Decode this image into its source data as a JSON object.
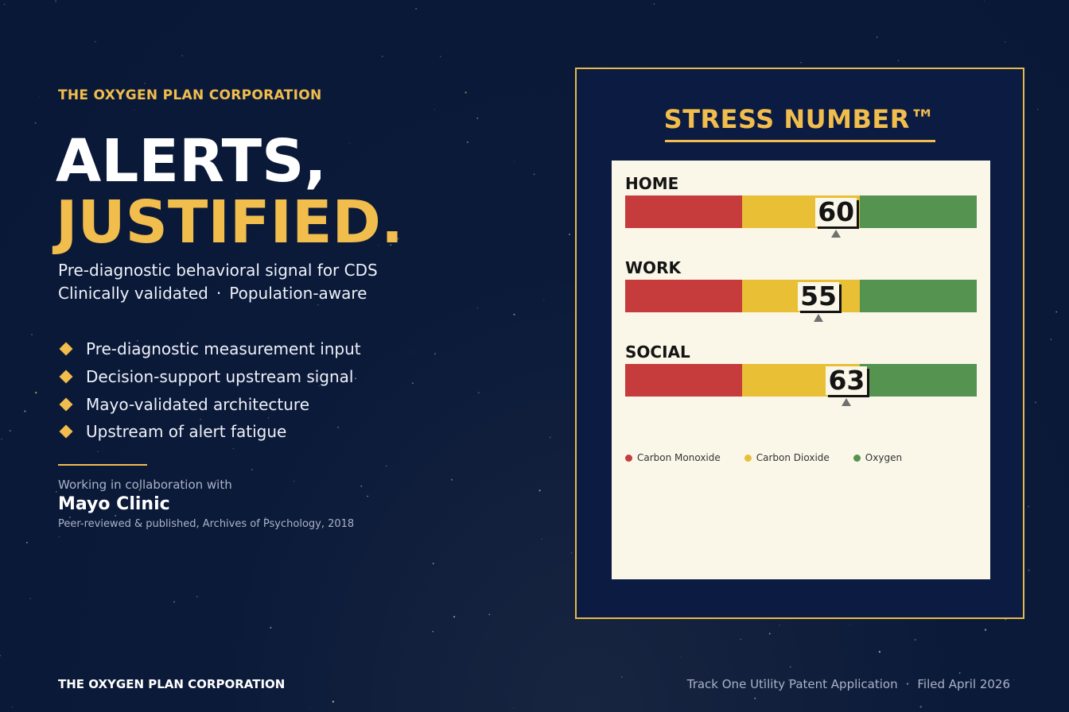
{
  "colors": {
    "background": "#0a1838",
    "accent": "#f1bd4c",
    "panel_background": "#0c1b42",
    "card_background": "#faf7e9",
    "red_zone": "#c63c3c",
    "yellow_zone": "#e9bf36",
    "green_zone": "#559350"
  },
  "header": {
    "company": "THE OXYGEN PLAN CORPORATION"
  },
  "headline": {
    "line1": "ALERTS,",
    "line2": "JUSTIFIED."
  },
  "subtitle": {
    "line1": "Pre-diagnostic behavioral signal for CDS",
    "line2_part1": "Clinically validated",
    "line2_sep": "·",
    "line2_part2": "Population-aware"
  },
  "features": [
    {
      "icon": "diamond-bullet-icon",
      "text": "Pre-diagnostic measurement input"
    },
    {
      "icon": "diamond-bullet-icon",
      "text": "Decision-support upstream signal"
    },
    {
      "icon": "diamond-bullet-icon",
      "text": "Mayo-validated architecture"
    },
    {
      "icon": "diamond-bullet-icon",
      "text": "Upstream of alert fatigue"
    }
  ],
  "collaboration": {
    "intro": "Working in collaboration with",
    "partner": "Mayo Clinic",
    "publication": "Peer-reviewed & published, Archives of Psychology, 2018"
  },
  "panel": {
    "title": "STRESS NUMBER™"
  },
  "chart_data": {
    "type": "bar",
    "title": "STRESS NUMBER™",
    "scale": [
      0,
      100
    ],
    "zones": [
      {
        "name": "Carbon Monoxide",
        "from": 0,
        "to": 33.3,
        "color": "#c63c3c"
      },
      {
        "name": "Carbon Dioxide",
        "from": 33.3,
        "to": 66.7,
        "color": "#e9bf36"
      },
      {
        "name": "Oxygen",
        "from": 66.7,
        "to": 100,
        "color": "#559350"
      }
    ],
    "gauges": [
      {
        "label": "HOME",
        "value": 60
      },
      {
        "label": "WORK",
        "value": 55
      },
      {
        "label": "SOCIAL",
        "value": 63
      }
    ],
    "legend": "bottom-left"
  },
  "footer": {
    "company": "THE OXYGEN PLAN CORPORATION",
    "application": "Track One Utility Patent Application",
    "separator": "·",
    "filed": "Filed April 2026"
  }
}
